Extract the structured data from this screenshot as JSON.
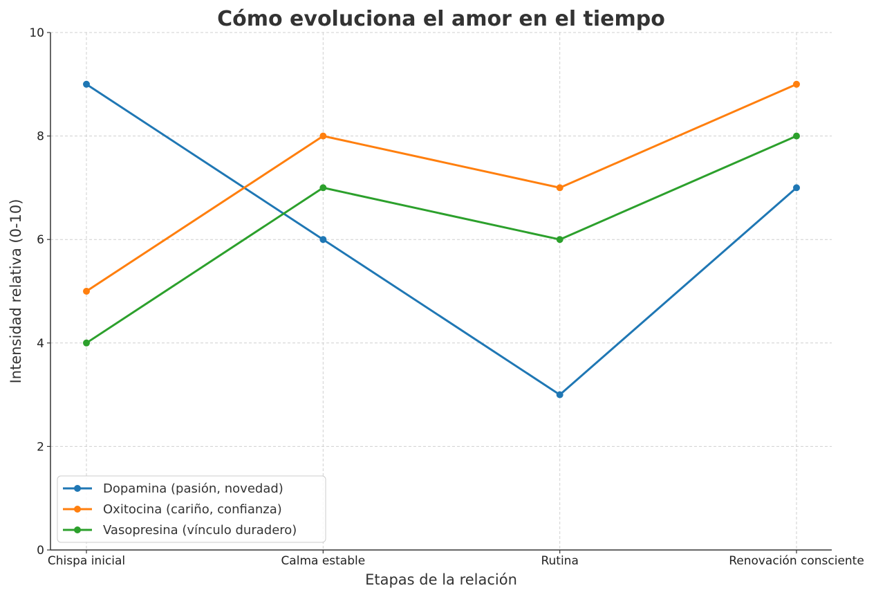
{
  "chart_data": {
    "type": "line",
    "title": "Cómo evoluciona el amor en el tiempo",
    "xlabel": "Etapas de la relación",
    "ylabel": "Intensidad relativa (0-10)",
    "categories": [
      "Chispa inicial",
      "Calma estable",
      "Rutina",
      "Renovación consciente"
    ],
    "ylim": [
      0,
      10
    ],
    "yticks": [
      0,
      2,
      4,
      6,
      8,
      10
    ],
    "grid": true,
    "legend_position": "lower-left",
    "series": [
      {
        "name": "Dopamina (pasión, novedad)",
        "values": [
          9,
          6,
          3,
          7
        ],
        "color": "#1f77b4"
      },
      {
        "name": "Oxitocina (cariño, confianza)",
        "values": [
          5,
          8,
          7,
          9
        ],
        "color": "#ff7f0e"
      },
      {
        "name": "Vasopresina (vínculo duradero)",
        "values": [
          4,
          7,
          6,
          8
        ],
        "color": "#2ca02c"
      }
    ]
  }
}
